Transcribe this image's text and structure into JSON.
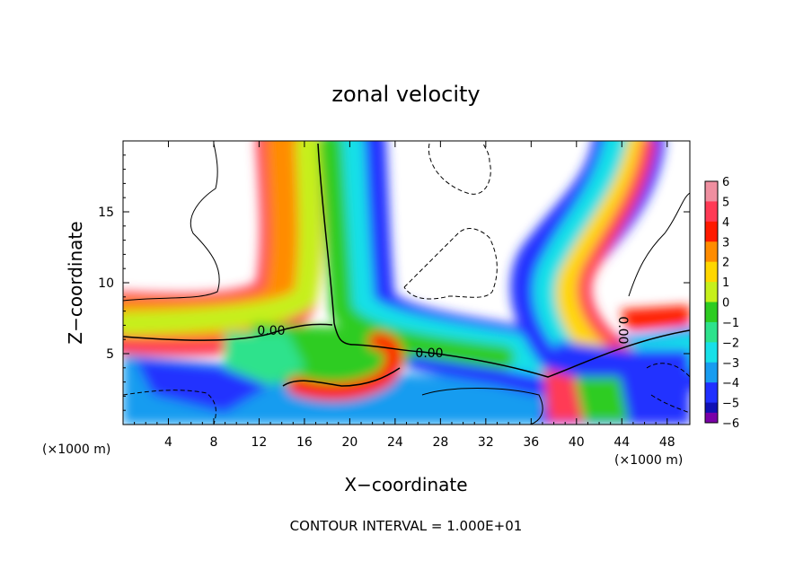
{
  "chart_data": {
    "type": "heatmap",
    "title": "zonal velocity",
    "xlabel": "X−coordinate",
    "ylabel": "Z−coordinate",
    "x_unit": "(×1000 m)",
    "x_unit_right": "(×1000 m)",
    "xlim": [
      0,
      50
    ],
    "ylim": [
      0,
      20
    ],
    "x_ticks": [
      4,
      8,
      12,
      16,
      20,
      24,
      28,
      32,
      36,
      40,
      44,
      48
    ],
    "x_tick_labels": [
      "4",
      "8",
      "12",
      "16",
      "20",
      "24",
      "28",
      "32",
      "36",
      "40",
      "44",
      "48"
    ],
    "y_ticks": [
      5,
      10,
      15
    ],
    "y_tick_labels": [
      "5",
      "10",
      "15"
    ],
    "colorbar": {
      "min": -6,
      "max": 6,
      "levels": [
        6,
        5,
        4,
        3,
        2,
        1,
        0,
        -1,
        -2,
        -3,
        -4,
        -5,
        -6
      ],
      "labels": [
        "6",
        "5",
        "4",
        "3",
        "2",
        "1",
        "0",
        "−1",
        "−2",
        "−3",
        "−4",
        "−5",
        "−6"
      ],
      "colors": [
        "#ef8fa0",
        "#ff3a55",
        "#ff1a00",
        "#ff8c00",
        "#ffd700",
        "#c6f01c",
        "#2ecc22",
        "#2ee28c",
        "#18e0e8",
        "#189cf0",
        "#2030ff",
        "#1010b4",
        "#7a00a8"
      ]
    },
    "contour_labels": [
      "0.00",
      "0.00",
      "0.00"
    ],
    "footer": "CONTOUR INTERVAL = 1.000E+01"
  }
}
